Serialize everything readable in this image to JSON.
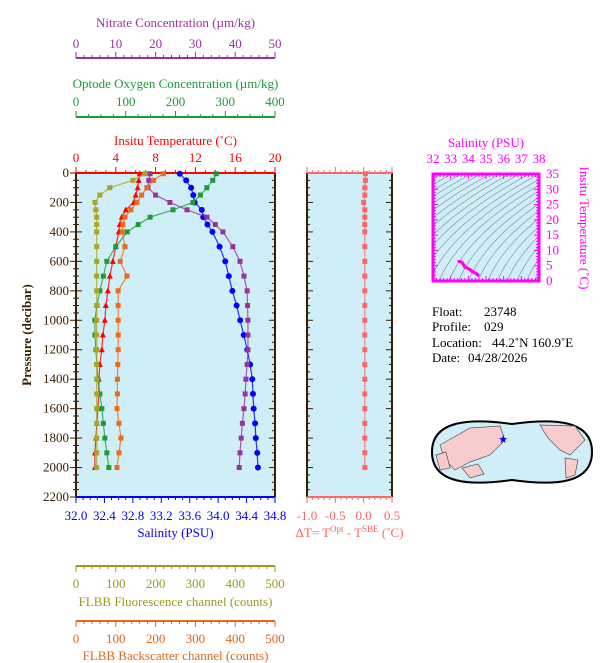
{
  "chart_data": {
    "type": "line",
    "pressure_axis": {
      "label": "Pressure (decibar)",
      "range": [
        0,
        2200
      ],
      "ticks": [
        0,
        200,
        400,
        600,
        800,
        1000,
        1200,
        1400,
        1600,
        1800,
        2000,
        2200
      ]
    },
    "pressure": [
      5,
      50,
      100,
      150,
      200,
      250,
      300,
      350,
      400,
      500,
      600,
      700,
      800,
      900,
      1000,
      1100,
      1200,
      1300,
      1400,
      1500,
      1600,
      1700,
      1800,
      1900,
      2000
    ],
    "series": [
      {
        "key": "temp",
        "name": "Insitu Temperature (˚C)",
        "color": "#ff0000",
        "marker": "triangle",
        "axis": "temp",
        "values": [
          6.4,
          6.3,
          6.2,
          6.0,
          5.8,
          5.0,
          4.6,
          4.4,
          4.3,
          4.0,
          3.7,
          3.4,
          3.2,
          3.0,
          2.9,
          2.7,
          2.6,
          2.4,
          2.3,
          2.3,
          2.2,
          2.1,
          2.0,
          1.9,
          1.9
        ]
      },
      {
        "key": "sal",
        "name": "Salinity (PSU)",
        "color": "#0000ff",
        "marker": "circle",
        "axis": "sal",
        "values": [
          33.46,
          33.55,
          33.62,
          33.65,
          33.67,
          33.77,
          33.79,
          33.85,
          33.92,
          34.02,
          34.1,
          34.15,
          34.2,
          34.26,
          34.31,
          34.36,
          34.41,
          34.45,
          34.48,
          34.49,
          34.5,
          34.52,
          34.53,
          34.55,
          34.56
        ]
      },
      {
        "key": "oxy",
        "name": "Optode Oxygen Concentration (µm/kg)",
        "color": "#1e9a3a",
        "marker": "square",
        "axis": "oxy",
        "values": [
          282,
          275,
          263,
          250,
          235,
          195,
          149,
          125,
          103,
          80,
          62,
          55,
          48,
          42,
          38,
          38,
          40,
          42,
          44,
          48,
          52,
          55,
          58,
          62,
          66
        ]
      },
      {
        "key": "nit",
        "name": "Nitrate Concentration (µm/kg)",
        "color": "#993399",
        "marker": "square",
        "axis": "nit",
        "values": [
          18.6,
          18.3,
          18.1,
          20,
          23.6,
          27.9,
          32.9,
          35,
          36.9,
          39.4,
          41.2,
          42.2,
          43.0,
          43.1,
          43.2,
          43.2,
          43.2,
          43.0,
          42.7,
          42.5,
          42.2,
          41.8,
          41.5,
          41.2,
          41.0
        ]
      },
      {
        "key": "flu",
        "name": "FLBB Fluorescence channel (counts)",
        "color": "#aaa522",
        "marker": "square",
        "axis": "flu",
        "values": [
          173,
          143,
          85,
          60,
          48,
          50,
          52,
          52,
          52,
          52,
          52,
          52,
          52,
          52,
          52,
          52,
          52,
          52,
          52,
          52,
          52,
          52,
          52,
          52,
          52
        ]
      },
      {
        "key": "bks",
        "name": "FLBB Backscatter channel (counts)",
        "color": "#ec6a1a",
        "marker": "square",
        "axis": "bks",
        "values": [
          219,
          195,
          178,
          165,
          153,
          138,
          123,
          118,
          116,
          123,
          111,
          128,
          106,
          106,
          106,
          106,
          106,
          105,
          104,
          104,
          103,
          108,
          113,
          108,
          103
        ]
      },
      {
        "key": "dt",
        "name": "ΔT= T^Opt - T^SBE (˚C)",
        "color": "#ff6666",
        "marker": "square",
        "axis": "dt",
        "values": [
          0.03,
          0.03,
          0.02,
          0.02,
          0.0,
          0.02,
          0.02,
          0.02,
          0.02,
          0.02,
          0.02,
          0.02,
          0.02,
          0.02,
          0.02,
          0.02,
          0.02,
          0.02,
          0.02,
          0.02,
          0.02,
          0.02,
          0.02,
          0.02,
          0.02
        ]
      }
    ],
    "axes": {
      "nit": {
        "title": "Nitrate Concentration (µm/kg)",
        "range": [
          0,
          50
        ],
        "ticks": [
          "0",
          "10",
          "20",
          "30",
          "40",
          "50"
        ],
        "color": "#993399"
      },
      "oxy": {
        "title": "Optode Oxygen Concentration (µm/kg)",
        "range": [
          0,
          400
        ],
        "ticks": [
          "0",
          "100",
          "200",
          "300",
          "400"
        ],
        "color": "#1e9a3a"
      },
      "temp": {
        "title": "Insitu Temperature (˚C)",
        "range": [
          0,
          20
        ],
        "ticks": [
          "0",
          "4",
          "8",
          "12",
          "16",
          "20"
        ],
        "color": "#ff0000"
      },
      "sal": {
        "title": "Salinity (PSU)",
        "range": [
          32.0,
          34.8
        ],
        "ticks": [
          "32.0",
          "32.4",
          "32.8",
          "33.2",
          "33.6",
          "34.0",
          "34.4",
          "34.8"
        ],
        "color": "#0000ff"
      },
      "flu": {
        "title": "FLBB Fluorescence channel (counts)",
        "range": [
          0,
          500
        ],
        "ticks": [
          "0",
          "100",
          "200",
          "300",
          "400",
          "500"
        ],
        "color": "#9a9a22"
      },
      "bks": {
        "title": "FLBB Backscatter channel (counts)",
        "range": [
          0,
          500
        ],
        "ticks": [
          "0",
          "100",
          "200",
          "300",
          "400",
          "500"
        ],
        "color": "#e0661a"
      },
      "dt": {
        "title_prefix": "ΔT= T",
        "sup1": "Opt",
        "mid": " - T",
        "sup2": "SBE",
        "suffix": " (˚C)",
        "range": [
          -1.0,
          0.5
        ],
        "ticks": [
          "-1.0",
          "-0.5",
          "0.0",
          "0.5"
        ],
        "color": "#ff6666"
      }
    },
    "ts_diagram": {
      "x_title": "Salinity (PSU)",
      "x_range": [
        32,
        38
      ],
      "x_ticks": [
        "32",
        "33",
        "34",
        "35",
        "36",
        "37",
        "38"
      ],
      "y_title": "Insitu Temperature (˚C)",
      "y_range": [
        0,
        35
      ],
      "y_ticks": [
        "0",
        "5",
        "10",
        "15",
        "20",
        "25",
        "30",
        "35"
      ],
      "color": "#ff00ff"
    }
  },
  "info": {
    "float_label": "Float:",
    "float": "23748",
    "profile_label": "Profile:",
    "profile": "029",
    "location_label": "Location:",
    "location": "44.2˚N  160.9˚E",
    "date_label": "Date:",
    "date": "04/28/2026"
  },
  "colors": {
    "plot_bg": "#cfeef8",
    "frame": "#3a1e00",
    "land": "#f8cccc",
    "ocean": "#cfeef8",
    "float_marker": "#0000ff"
  }
}
